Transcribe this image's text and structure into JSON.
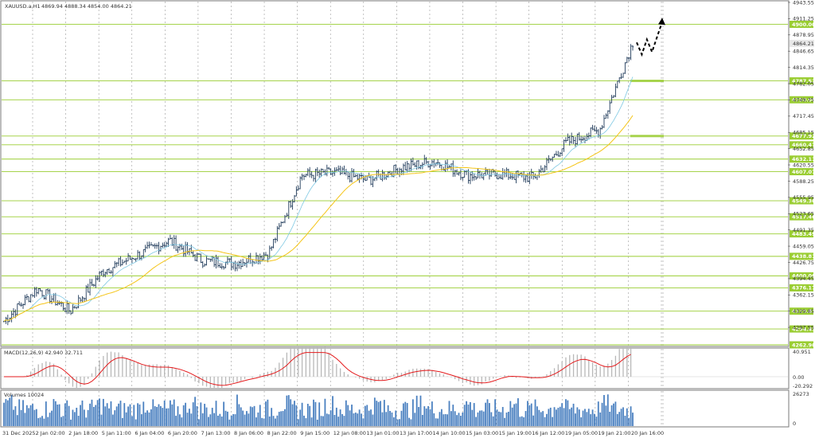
{
  "header": {
    "symbol_label": "XAUUSD.a,H1",
    "ohlc_text": "4869.94 4888.34 4854.00 4864.21"
  },
  "macd": {
    "label": "MACD(12,26,9) 42.940 32.711",
    "axis": [
      "40.951",
      "0.00",
      "-20.292"
    ]
  },
  "volumes": {
    "label": "Volumes 10024",
    "axis": [
      "26273",
      "0"
    ]
  },
  "price_axis": [
    "4943.55",
    "4911.25",
    "4878.95",
    "4846.65",
    "4814.35",
    "4782.05",
    "4749.75",
    "4717.45",
    "4685.15",
    "4652.85",
    "4620.55",
    "4588.25",
    "4555.95",
    "4523.65",
    "4491.35",
    "4459.05",
    "4426.75",
    "4394.45",
    "4362.15",
    "4329.85",
    "4297.55"
  ],
  "current_price_label": "4864.21",
  "levels": [
    "4900.00",
    "4787.52",
    "4750.00",
    "4677.92",
    "4660.47",
    "4632.11",
    "4607.07",
    "4549.30",
    "4517.46",
    "4483.49",
    "4438.81",
    "4400.00",
    "4376.17",
    "4329.83",
    "4294.45",
    "4262.90"
  ],
  "colors": {
    "level_line": "#9acd32",
    "level_label_bg": "#9acd32",
    "bar": "#1f3a5a",
    "ma_fast": "#7ec8e3",
    "ma_slow": "#f5c518",
    "macd_hist": "#b8b8b8",
    "macd_signal": "#e41a1c",
    "volume_bar": "#4a80c0",
    "forecast": "#000000"
  },
  "chart_data": {
    "type": "line",
    "title": "XAUUSD.a,H1",
    "xlabel": "",
    "ylabel": "",
    "x": [
      "31 Dec 2025",
      "2 Jan 02:00",
      "2 Jan 18:00",
      "5 Jan 11:00",
      "6 Jan 04:00",
      "6 Jan 20:00",
      "7 Jan 13:00",
      "8 Jan 06:00",
      "8 Jan 22:00",
      "9 Jan 15:00",
      "12 Jan 08:00",
      "13 Jan 01:00",
      "13 Jan 17:00",
      "14 Jan 10:00",
      "15 Jan 03:00",
      "15 Jan 19:00",
      "16 Jan 12:00",
      "19 Jan 05:00",
      "19 Jan 21:00",
      "20 Jan 16:00"
    ],
    "ylim": [
      4262.9,
      4943.55
    ],
    "series": [
      {
        "values": [
          4310,
          4375,
          4330,
          4410,
          4440,
          4470,
          4430,
          4425,
          4445,
          4600,
          4605,
          4590,
          4615,
          4628,
          4600,
          4602,
          4595,
          4665,
          4690,
          4864
        ]
      }
    ],
    "forecast_path": [
      4864,
      4840,
      4870,
      4845,
      4875,
      4905
    ]
  }
}
